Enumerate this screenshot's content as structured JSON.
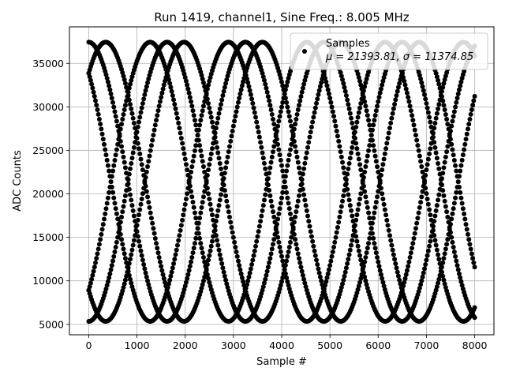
{
  "chart_data": {
    "type": "scatter",
    "title": "Run 1419, channel1, Sine Freq.: 8.005 MHz",
    "xlabel": "Sample #",
    "ylabel": "ADC Counts",
    "xlim": [
      -400,
      8400
    ],
    "ylim": [
      3800,
      39200
    ],
    "xticks": [
      0,
      1000,
      2000,
      3000,
      4000,
      5000,
      6000,
      7000,
      8000
    ],
    "yticks": [
      5000,
      10000,
      15000,
      20000,
      25000,
      30000,
      35000
    ],
    "grid": true,
    "legend": {
      "placement": "top-right",
      "entries": [
        {
          "label_line1": "Samples",
          "label_line2": "μ = 21393.81, σ = 11374.85"
        }
      ]
    },
    "marker_color": "#000000",
    "series": [
      {
        "name": "Samples",
        "sine": {
          "mean": 21393.81,
          "amplitude": 16050,
          "period_samples": 3248,
          "num_samples": 8000
        },
        "phases_start_deg": [
          0,
          39,
          141,
          180,
          219,
          321
        ]
      }
    ]
  }
}
